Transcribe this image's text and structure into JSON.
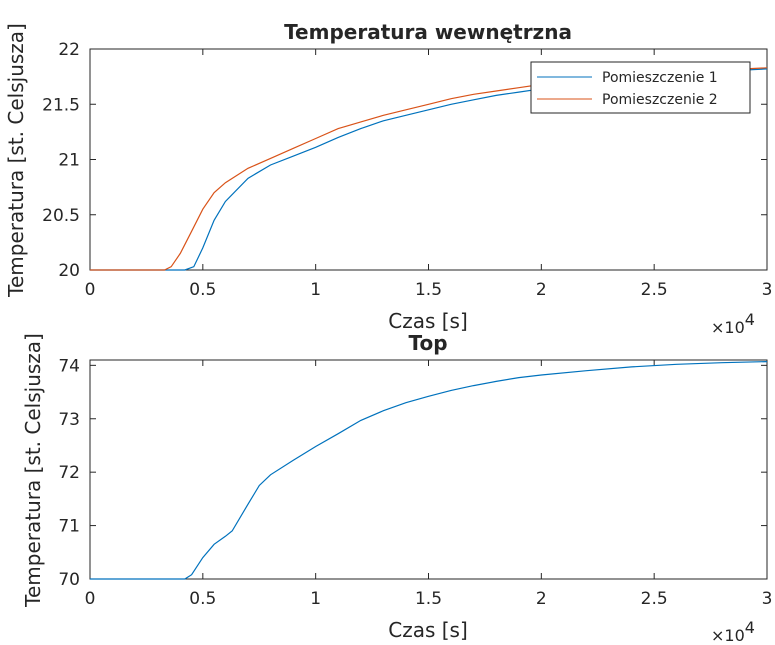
{
  "chart_data": [
    {
      "type": "line",
      "title": "Temperatura wewnętrzna",
      "xlabel": "Czas [s]",
      "ylabel": "Temperatura [st. Celsjusza]",
      "x_exponent_base": "×10",
      "x_exponent_power": "4",
      "xlim": [
        0,
        30000
      ],
      "ylim": [
        20,
        22
      ],
      "xticks": [
        0,
        5000,
        10000,
        15000,
        20000,
        25000,
        30000
      ],
      "xtick_labels": [
        "0",
        "0.5",
        "1",
        "1.5",
        "2",
        "2.5",
        "3"
      ],
      "yticks": [
        20,
        20.5,
        21,
        21.5,
        22
      ],
      "ytick_labels": [
        "20",
        "20.5",
        "21",
        "21.5",
        "22"
      ],
      "grid": false,
      "legend": "top-right",
      "series": [
        {
          "name": "Pomieszczenie 1",
          "color": "#0072BD",
          "x": [
            0,
            4200,
            4600,
            5000,
            5500,
            6000,
            7000,
            8000,
            9000,
            10000,
            11000,
            12000,
            13000,
            14000,
            15000,
            16000,
            17000,
            18000,
            19000,
            20000,
            22000,
            24000,
            26000,
            28000,
            30000
          ],
          "y": [
            20.0,
            20.0,
            20.03,
            20.2,
            20.45,
            20.62,
            20.83,
            20.95,
            21.03,
            21.11,
            21.2,
            21.28,
            21.35,
            21.4,
            21.45,
            21.5,
            21.54,
            21.58,
            21.61,
            21.64,
            21.7,
            21.74,
            21.77,
            21.8,
            21.82
          ]
        },
        {
          "name": "Pomieszczenie 2",
          "color": "#D95319",
          "x": [
            0,
            3300,
            3600,
            4000,
            4500,
            5000,
            5500,
            6000,
            7000,
            8000,
            9000,
            10000,
            11000,
            12000,
            13000,
            14000,
            15000,
            16000,
            17000,
            18000,
            19000,
            20000,
            22000,
            24000,
            26000,
            28000,
            30000
          ],
          "y": [
            20.0,
            20.0,
            20.03,
            20.15,
            20.35,
            20.55,
            20.7,
            20.79,
            20.92,
            21.01,
            21.1,
            21.19,
            21.28,
            21.34,
            21.4,
            21.45,
            21.5,
            21.55,
            21.59,
            21.62,
            21.65,
            21.68,
            21.72,
            21.76,
            21.79,
            21.81,
            21.83
          ]
        }
      ]
    },
    {
      "type": "line",
      "title": "Top",
      "xlabel": "Czas [s]",
      "ylabel": "Temperatura [st. Celsjusza]",
      "x_exponent_base": "×10",
      "x_exponent_power": "4",
      "xlim": [
        0,
        30000
      ],
      "ylim": [
        70,
        74.1
      ],
      "xticks": [
        0,
        5000,
        10000,
        15000,
        20000,
        25000,
        30000
      ],
      "xtick_labels": [
        "0",
        "0.5",
        "1",
        "1.5",
        "2",
        "2.5",
        "3"
      ],
      "yticks": [
        70,
        71,
        72,
        73,
        74
      ],
      "ytick_labels": [
        "70",
        "71",
        "72",
        "73",
        "74"
      ],
      "grid": false,
      "series": [
        {
          "color": "#0072BD",
          "x": [
            0,
            4200,
            4500,
            5000,
            5500,
            6000,
            6300,
            7000,
            7500,
            8000,
            9000,
            10000,
            11000,
            12000,
            13000,
            14000,
            15000,
            16000,
            17000,
            18000,
            19000,
            20000,
            22000,
            24000,
            26000,
            28000,
            30000
          ],
          "y": [
            70.0,
            70.0,
            70.08,
            70.4,
            70.65,
            70.8,
            70.9,
            71.4,
            71.75,
            71.95,
            72.22,
            72.48,
            72.72,
            72.97,
            73.15,
            73.3,
            73.42,
            73.53,
            73.62,
            73.7,
            73.77,
            73.82,
            73.9,
            73.97,
            74.02,
            74.05,
            74.07
          ]
        }
      ]
    }
  ]
}
